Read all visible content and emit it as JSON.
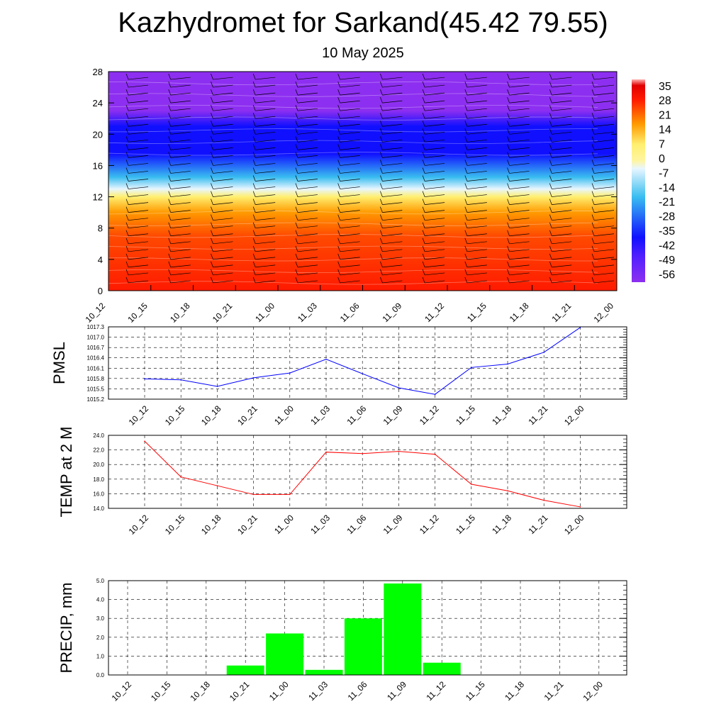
{
  "title": "Kazhydromet for Sarkand(45.42 79.55)",
  "subtitle": "10 May 2025",
  "chart_data": [
    {
      "type": "heatmap",
      "x_ticks": [
        "10_12",
        "10_15",
        "10_18",
        "10_21",
        "11_00",
        "11_03",
        "11_06",
        "11_09",
        "11_12",
        "11_15",
        "11_18",
        "11_21",
        "12_00"
      ],
      "y_ticks": [
        0,
        4,
        8,
        12,
        16,
        20,
        24,
        28
      ],
      "ylim": [
        0,
        28
      ],
      "colorbar_labels": [
        "35",
        "28",
        "21",
        "14",
        "7",
        "0",
        "-7",
        "-14",
        "-21",
        "-28",
        "-35",
        "-42",
        "-49",
        "-56"
      ],
      "colorbar_range": [
        -60,
        38
      ],
      "colors": {
        "hot": "#ff1a00",
        "orange": "#ff9a00",
        "yellow": "#ffef70",
        "pale": "#e8f6ff",
        "cyan": "#39bdf0",
        "blue": "#1010ff",
        "violet": "#8d2ff0"
      }
    },
    {
      "type": "line",
      "ylabel": "PMSL",
      "categories": [
        "10_12",
        "10_15",
        "10_18",
        "10_21",
        "11_00",
        "11_03",
        "11_06",
        "11_09",
        "11_12",
        "11_15",
        "11_18",
        "11_21",
        "12_00"
      ],
      "y_ticks": [
        "1015.2",
        "1015.5",
        "1015.8",
        "1016.1",
        "1016.4",
        "1016.7",
        "1017.0",
        "1017.3"
      ],
      "ylim": [
        1015.2,
        1017.3
      ],
      "values": [
        1015.79,
        1015.76,
        1015.57,
        1015.82,
        1015.96,
        1016.36,
        1015.94,
        1015.53,
        1015.34,
        1016.12,
        1016.22,
        1016.56,
        1017.28
      ],
      "color": "#0000ff"
    },
    {
      "type": "line",
      "ylabel": "TEMP at 2 M",
      "categories": [
        "10_12",
        "10_15",
        "10_18",
        "10_21",
        "11_00",
        "11_03",
        "11_06",
        "11_09",
        "11_12",
        "11_15",
        "11_18",
        "11_21",
        "12_00"
      ],
      "y_ticks": [
        "14.0",
        "16.0",
        "18.0",
        "20.0",
        "22.0",
        "24.0"
      ],
      "ylim": [
        14,
        24
      ],
      "values": [
        23.2,
        18.3,
        17.1,
        15.9,
        15.9,
        21.7,
        21.5,
        21.8,
        21.4,
        17.3,
        16.4,
        15.1,
        14.2
      ],
      "color": "#ff0000"
    },
    {
      "type": "bar",
      "ylabel": "PRECIP, mm",
      "categories": [
        "10_12",
        "10_15",
        "10_18",
        "10_21",
        "11_00",
        "11_03",
        "11_06",
        "11_09",
        "11_12",
        "11_15",
        "11_18",
        "11_21",
        "12_00"
      ],
      "y_ticks": [
        "0.0",
        "1.0",
        "2.0",
        "3.0",
        "4.0",
        "5.0"
      ],
      "ylim": [
        0,
        5
      ],
      "values": [
        0,
        0,
        0,
        0.5,
        2.2,
        0.27,
        3.0,
        4.85,
        0.65,
        0,
        0,
        0,
        0
      ],
      "color": "#00ff00"
    }
  ]
}
